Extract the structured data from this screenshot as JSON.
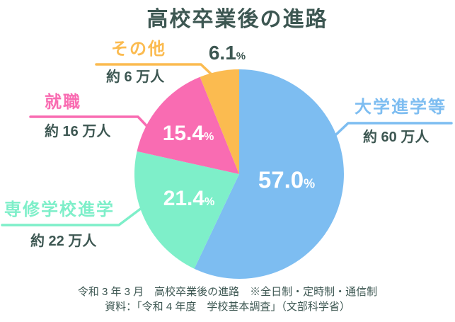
{
  "page": {
    "background": "#FFFFFF"
  },
  "title": "高校卒業後の進路",
  "chart_data": {
    "type": "pie",
    "title": "高校卒業後の進路",
    "direction": "clockwise",
    "start_angle_deg": 0,
    "unit": "%",
    "slices": [
      {
        "label": "大学進学等",
        "value_pct": 57.0,
        "pct_display": "57.0",
        "count_label": "約 60 万人",
        "color": "#7DBDF1"
      },
      {
        "label": "専修学校進学",
        "value_pct": 21.4,
        "pct_display": "21.4",
        "count_label": "約 22 万人",
        "color": "#7EEFC9"
      },
      {
        "label": "就職",
        "value_pct": 15.4,
        "pct_display": "15.4",
        "count_label": "約 16 万人",
        "color": "#F96CB2"
      },
      {
        "label": "その他",
        "value_pct": 6.1,
        "pct_display": "6.1",
        "count_label": "約 6 万人",
        "color": "#FBBB50"
      }
    ],
    "value_label_color_inside": "#FFFFFF",
    "value_label_color_outside": "#3D5752"
  },
  "caption": {
    "line1": "令和 3 年 3 月　高校卒業後の進路　※全日制・定時制・通信制",
    "line2": "資料：「令和 4 年度　学校基本調査」（文部科学省）"
  },
  "colors": {
    "text_dark": "#3D5752"
  }
}
